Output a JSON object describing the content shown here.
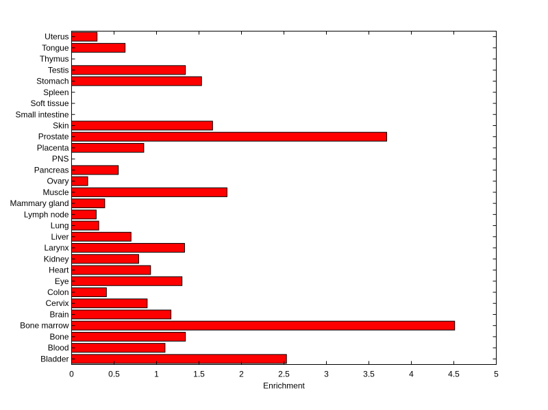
{
  "chart_data": {
    "type": "bar",
    "orientation": "horizontal",
    "title": "",
    "xlabel": "Enrichment",
    "ylabel": "",
    "xlim": [
      0,
      5
    ],
    "xticks": [
      0,
      0.5,
      1,
      1.5,
      2,
      2.5,
      3,
      3.5,
      4,
      4.5,
      5
    ],
    "xtick_labels": [
      "0",
      "0.5",
      "1",
      "1.5",
      "2",
      "2.5",
      "3",
      "3.5",
      "4",
      "4.5",
      "5"
    ],
    "grid": false,
    "legend": "none",
    "bar_color": "#ff0000",
    "bar_edge_color": "#000000",
    "categories": [
      "Bladder",
      "Blood",
      "Bone",
      "Bone marrow",
      "Brain",
      "Cervix",
      "Colon",
      "Eye",
      "Heart",
      "Kidney",
      "Larynx",
      "Liver",
      "Lung",
      "Lymph node",
      "Mammary gland",
      "Muscle",
      "Ovary",
      "Pancreas",
      "PNS",
      "Placenta",
      "Prostate",
      "Skin",
      "Small intestine",
      "Soft tissue",
      "Spleen",
      "Stomach",
      "Testis",
      "Thymus",
      "Tongue",
      "Uterus"
    ],
    "values": [
      2.53,
      1.1,
      1.34,
      4.51,
      1.17,
      0.89,
      0.41,
      1.3,
      0.93,
      0.79,
      1.33,
      0.7,
      0.32,
      0.29,
      0.39,
      1.83,
      0.19,
      0.55,
      0,
      0.85,
      3.71,
      1.66,
      0,
      0,
      0,
      1.53,
      1.34,
      0,
      0.63,
      0.3
    ]
  }
}
